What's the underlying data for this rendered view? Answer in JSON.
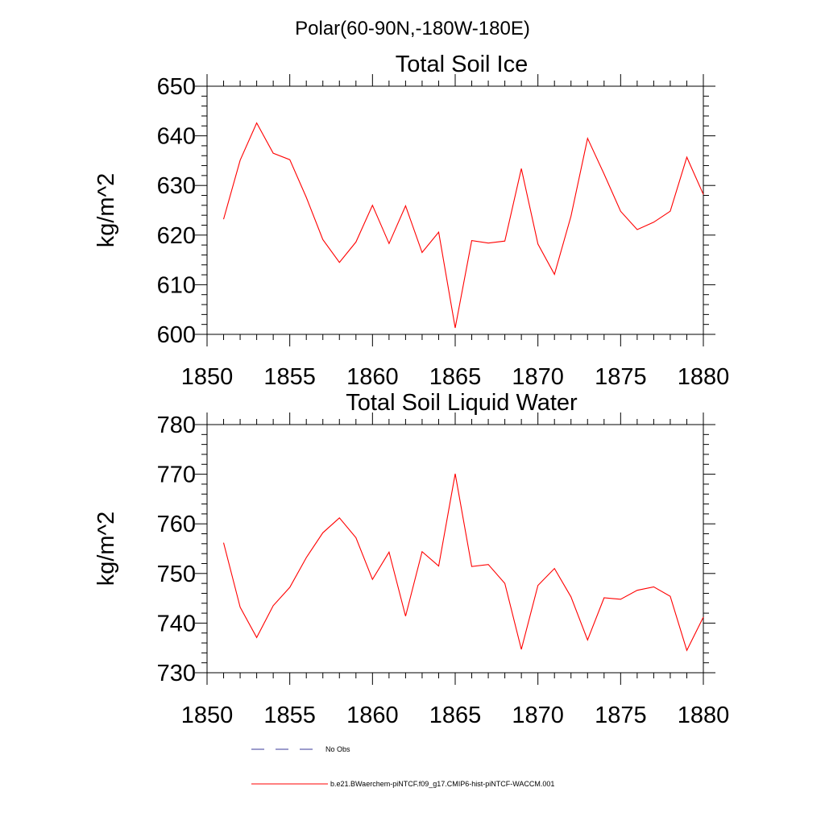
{
  "suptitle": "Polar(60-90N,-180W-180E)",
  "legend": {
    "obs_label": "No Obs",
    "obs_color": "#3a3a9a",
    "model_label": "b.e21.BWaerchem-piNTCF.f09_g17.CMIP6-hist-piNTCF-WACCM.001",
    "model_color": "#ff0000"
  },
  "chart_data": [
    {
      "type": "line",
      "title": "Total Soil Ice",
      "xlabel": "",
      "ylabel": "kg/m^2",
      "xlim": [
        1850,
        1880
      ],
      "ylim": [
        600,
        650
      ],
      "xticks": [
        1850,
        1855,
        1860,
        1865,
        1870,
        1875,
        1880
      ],
      "yticks": [
        600,
        610,
        620,
        630,
        640,
        650
      ],
      "grid": false,
      "series": [
        {
          "color": "#ff0000",
          "x": [
            1851,
            1852,
            1853,
            1854,
            1855,
            1856,
            1857,
            1858,
            1859,
            1860,
            1861,
            1862,
            1863,
            1864,
            1865,
            1866,
            1867,
            1868,
            1869,
            1870,
            1871,
            1872,
            1873,
            1874,
            1875,
            1876,
            1877,
            1878,
            1879,
            1880
          ],
          "values": [
            623.2,
            635.1,
            642.6,
            636.5,
            635.2,
            627.6,
            619.1,
            614.5,
            618.6,
            626.0,
            618.3,
            625.9,
            616.5,
            620.6,
            601.3,
            618.9,
            618.4,
            618.8,
            633.4,
            618.2,
            612.1,
            623.8,
            639.5,
            632.3,
            624.8,
            621.1,
            622.6,
            624.8,
            635.7,
            628.2
          ]
        }
      ]
    },
    {
      "type": "line",
      "title": "Total Soil Liquid Water",
      "xlabel": "",
      "ylabel": "kg/m^2",
      "xlim": [
        1850,
        1880
      ],
      "ylim": [
        730,
        780
      ],
      "xticks": [
        1850,
        1855,
        1860,
        1865,
        1870,
        1875,
        1880
      ],
      "yticks": [
        730,
        740,
        750,
        760,
        770,
        780
      ],
      "grid": false,
      "series": [
        {
          "color": "#ff0000",
          "x": [
            1851,
            1852,
            1853,
            1854,
            1855,
            1856,
            1857,
            1858,
            1859,
            1860,
            1861,
            1862,
            1863,
            1864,
            1865,
            1866,
            1867,
            1868,
            1869,
            1870,
            1871,
            1872,
            1873,
            1874,
            1875,
            1876,
            1877,
            1878,
            1879,
            1880
          ],
          "values": [
            756.2,
            743.2,
            737.1,
            743.5,
            747.2,
            753.2,
            758.2,
            761.2,
            757.2,
            748.8,
            754.3,
            741.4,
            754.4,
            751.5,
            770.1,
            751.4,
            751.8,
            748.0,
            734.7,
            747.6,
            751.0,
            745.3,
            736.6,
            745.1,
            744.8,
            746.6,
            747.3,
            745.4,
            734.5,
            741.2
          ]
        }
      ]
    }
  ]
}
